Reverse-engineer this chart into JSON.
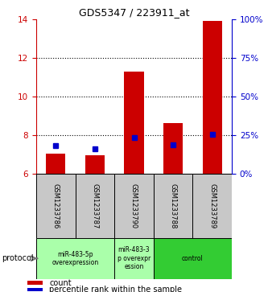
{
  "title": "GDS5347 / 223911_at",
  "samples": [
    "GSM1233786",
    "GSM1233787",
    "GSM1233790",
    "GSM1233788",
    "GSM1233789"
  ],
  "red_values": [
    7.05,
    6.95,
    11.3,
    8.6,
    13.9
  ],
  "blue_values": [
    7.45,
    7.3,
    7.85,
    7.5,
    8.05
  ],
  "ylim_left": [
    6,
    14
  ],
  "ylim_right": [
    0,
    100
  ],
  "yticks_left": [
    6,
    8,
    10,
    12,
    14
  ],
  "yticks_right": [
    0,
    25,
    50,
    75,
    100
  ],
  "ytick_labels_right": [
    "0%",
    "25%",
    "50%",
    "75%",
    "100%"
  ],
  "dotted_lines": [
    8,
    10,
    12
  ],
  "protocol_label": "protocol",
  "legend_red": "count",
  "legend_blue": "percentile rank within the sample",
  "red_color": "#cc0000",
  "blue_color": "#0000cc",
  "left_axis_color": "#cc0000",
  "right_axis_color": "#0000cc",
  "bg_sample_label": "#c8c8c8",
  "bg_protocol_light": "#aaffaa",
  "bg_protocol_dark": "#33cc33",
  "protocol_groups_indices": [
    [
      0,
      1
    ],
    [
      2
    ],
    [
      3,
      4
    ]
  ],
  "protocol_groups_labels": [
    "miR-483-5p\noverexpression",
    "miR-483-3\np overexpr\nession",
    "control"
  ],
  "protocol_groups_colors": [
    "#aaffaa",
    "#aaffaa",
    "#33cc33"
  ]
}
